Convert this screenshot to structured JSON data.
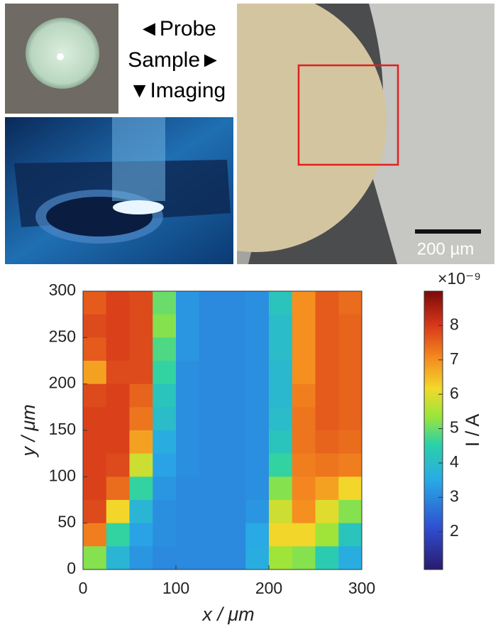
{
  "chart_data": {
    "type": "heatmap",
    "annotations": [
      "◄Probe",
      "Sample►",
      "▼Imaging",
      "200 µm"
    ],
    "xlabel": "x / μm",
    "ylabel": "y / μm",
    "colorbar_label": "I / A",
    "colorbar_multiplier": "×10⁻⁹",
    "x": [
      12.5,
      37.5,
      62.5,
      87.5,
      112.5,
      137.5,
      162.5,
      187.5,
      212.5,
      237.5,
      262.5,
      287.5
    ],
    "y": [
      287.5,
      262.5,
      237.5,
      212.5,
      187.5,
      162.5,
      137.5,
      112.5,
      87.5,
      62.5,
      37.5,
      12.5
    ],
    "values": [
      [
        7.6,
        7.9,
        7.8,
        5.0,
        3.2,
        3.0,
        3.0,
        3.1,
        4.2,
        7.0,
        7.6,
        7.4
      ],
      [
        7.8,
        7.9,
        7.8,
        5.2,
        3.2,
        3.0,
        3.0,
        3.1,
        4.0,
        7.0,
        7.6,
        7.5
      ],
      [
        7.6,
        7.9,
        7.8,
        4.8,
        3.2,
        3.0,
        3.0,
        3.1,
        4.0,
        7.0,
        7.6,
        7.5
      ],
      [
        6.8,
        7.8,
        7.8,
        4.6,
        3.1,
        3.0,
        3.0,
        3.1,
        3.9,
        7.0,
        7.6,
        7.5
      ],
      [
        7.8,
        7.9,
        7.5,
        4.2,
        3.1,
        3.0,
        3.0,
        3.1,
        3.9,
        7.2,
        7.6,
        7.5
      ],
      [
        7.9,
        7.9,
        7.3,
        4.0,
        3.1,
        3.0,
        3.0,
        3.1,
        4.0,
        7.3,
        7.6,
        7.5
      ],
      [
        7.9,
        7.9,
        6.8,
        3.6,
        3.1,
        3.0,
        3.0,
        3.1,
        4.2,
        7.3,
        7.5,
        7.4
      ],
      [
        7.9,
        7.8,
        5.8,
        3.4,
        3.1,
        3.0,
        3.0,
        3.1,
        4.6,
        7.2,
        7.3,
        7.2
      ],
      [
        7.9,
        7.4,
        4.6,
        3.2,
        3.0,
        3.0,
        3.0,
        3.1,
        5.2,
        7.1,
        6.8,
        6.2
      ],
      [
        7.8,
        6.2,
        3.8,
        3.1,
        3.0,
        3.0,
        3.0,
        3.2,
        5.8,
        7.0,
        6.0,
        5.2
      ],
      [
        7.2,
        4.6,
        3.4,
        3.1,
        3.0,
        3.0,
        3.0,
        3.5,
        6.2,
        6.2,
        5.4,
        4.2
      ],
      [
        5.2,
        3.8,
        3.2,
        3.0,
        3.0,
        3.0,
        3.0,
        3.6,
        5.4,
        5.2,
        4.4,
        3.6
      ]
    ],
    "xlim": [
      0,
      300
    ],
    "xticks": [
      0,
      100,
      200,
      300
    ],
    "ylim": [
      0,
      300
    ],
    "yticks": [
      0,
      50,
      100,
      150,
      200,
      250,
      300
    ],
    "clim": [
      0.9,
      9.0
    ],
    "cticks": [
      2,
      3,
      4,
      5,
      6,
      7,
      8
    ]
  }
}
